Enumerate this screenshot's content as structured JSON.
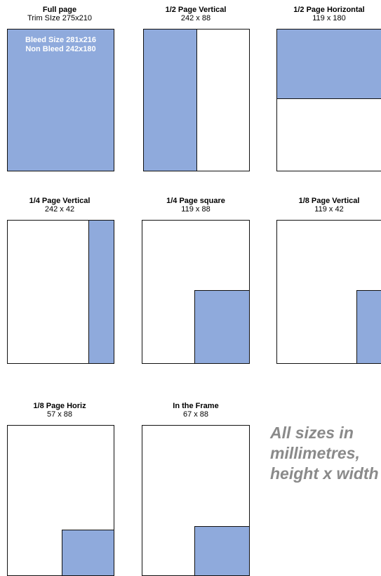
{
  "layouts": [
    {
      "title": "Full page",
      "size": "Trim SIze 275x210",
      "bleed_text": [
        "Bleed Size 281x216",
        "Non Bleed 242x180"
      ]
    },
    {
      "title": "1/2 Page Vertical",
      "size": "242 x 88"
    },
    {
      "title": "1/2 Page Horizontal",
      "size": "119 x 180"
    },
    {
      "title": "1/4 Page Vertical",
      "size": "242 x 42"
    },
    {
      "title": "1/4 Page square",
      "size": "119 x 88"
    },
    {
      "title": "1/8 Page Vertical",
      "size": "119 x 42"
    },
    {
      "title": "1/8 Page Horiz",
      "size": "57 x 88"
    },
    {
      "title": "In the Frame",
      "size": "67 x 88"
    }
  ],
  "note_lines": [
    "All sizes in",
    "millimetres,",
    "height x width"
  ],
  "colors": {
    "ad_fill": "#8faadc",
    "page_border": "#111111",
    "note_text": "#8a8a8a"
  }
}
